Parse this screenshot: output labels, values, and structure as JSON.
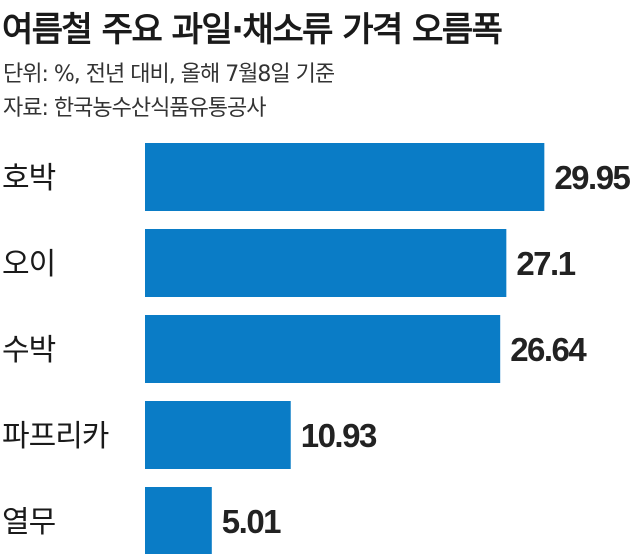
{
  "chart_data": {
    "type": "bar",
    "orientation": "horizontal",
    "title": "여름철 주요 과일·채소류 가격 오름폭",
    "unit_note": "단위: %, 전년 대비, 올해 7월8일 기준",
    "source_note": "자료: 한국농수산식품유통공사",
    "categories": [
      "호박",
      "오이",
      "수박",
      "파프리카",
      "열무"
    ],
    "values": [
      29.95,
      27.1,
      26.64,
      10.93,
      5.01
    ],
    "value_labels": [
      "29.95",
      "27.1",
      "26.64",
      "10.93",
      "5.01"
    ],
    "xlim": [
      0,
      30
    ],
    "grid": false,
    "legend": "none",
    "bar_color": "#0a7cc6"
  }
}
